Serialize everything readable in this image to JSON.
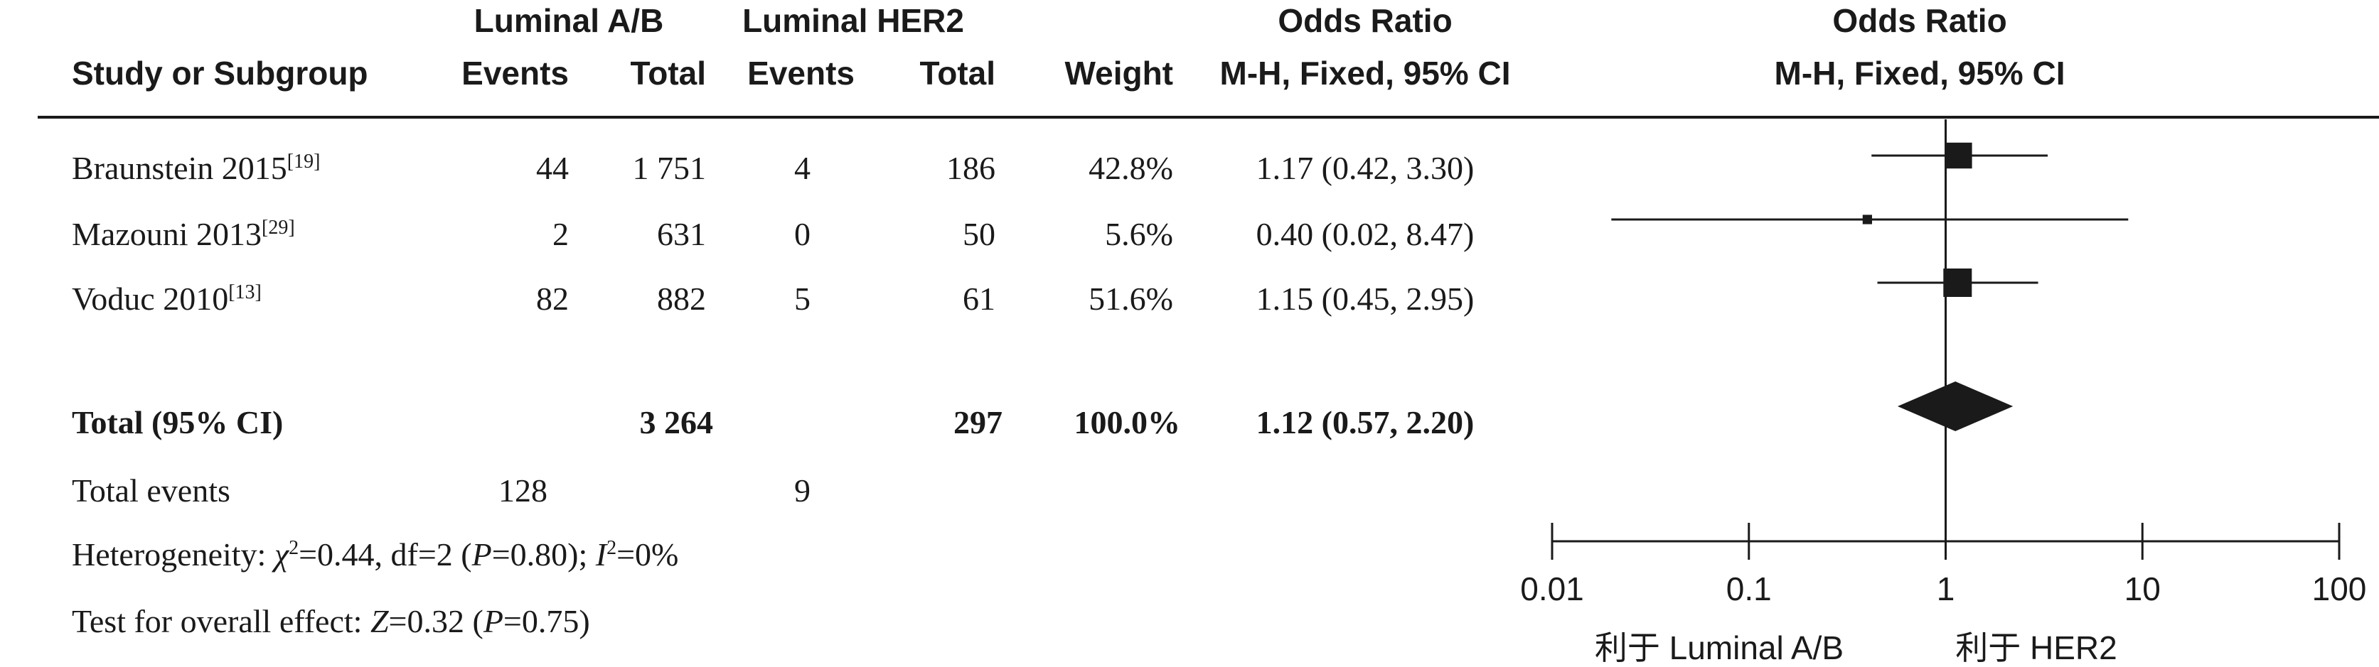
{
  "columns": {
    "group1_name": "Luminal A/B",
    "group2_name": "Luminal HER2",
    "study": "Study or Subgroup",
    "events1": "Events",
    "total1": "Total",
    "events2": "Events",
    "total2": "Total",
    "weight": "Weight",
    "or_title": "Odds Ratio",
    "or_method": "M-H, Fixed, 95% CI",
    "plot_title": "Odds Ratio",
    "plot_method": "M-H, Fixed, 95% CI"
  },
  "studies": [
    {
      "name": "Braunstein 2015",
      "ref": "[19]",
      "events1": "44",
      "total1": "1 751",
      "events2": "4",
      "total2": "186",
      "weight": "42.8%",
      "ci_text": "1.17 (0.42, 3.30)"
    },
    {
      "name": "Mazouni 2013",
      "ref": "[29]",
      "events1": "2",
      "total1": "631",
      "events2": "0",
      "total2": "50",
      "weight": "5.6%",
      "ci_text": "0.40 (0.02, 8.47)"
    },
    {
      "name": "Voduc 2010",
      "ref": "[13]",
      "events1": "82",
      "total1": "882",
      "events2": "5",
      "total2": "61",
      "weight": "51.6%",
      "ci_text": "1.15 (0.45, 2.95)"
    }
  ],
  "total": {
    "label": "Total (95% CI)",
    "total1": "3 264",
    "total2": "297",
    "weight": "100.0%",
    "ci_text": "1.12 (0.57, 2.20)"
  },
  "events": {
    "label": "Total events",
    "events1": "128",
    "events2": "9"
  },
  "heterogeneity": {
    "prefix": "Heterogeneity: ",
    "chi_symbol": "χ",
    "chi_rest": "=0.44, df=2 (",
    "p_symbol": "P",
    "p_rest": "=0.80); ",
    "i_symbol": "I",
    "i_rest": "=0%"
  },
  "overall": {
    "prefix": "Test for overall effect: ",
    "z_symbol": "Z",
    "z_rest": "=0.32 (",
    "p_symbol": "P",
    "p_rest": "=0.75)"
  },
  "chart_data": {
    "type": "forest",
    "x_scale": "log",
    "xlim": [
      0.01,
      100
    ],
    "ticks": [
      0.01,
      0.1,
      1,
      10,
      100
    ],
    "tick_labels": [
      "0.01",
      "0.1",
      "1",
      "10",
      "100"
    ],
    "favours_left": "利于 Luminal A/B",
    "favours_right": "利于 HER2",
    "reference_line": 1,
    "studies": [
      {
        "name": "Braunstein 2015",
        "or": 1.17,
        "lower": 0.42,
        "upper": 3.3,
        "weight": 42.8
      },
      {
        "name": "Mazouni 2013",
        "or": 0.4,
        "lower": 0.02,
        "upper": 8.47,
        "weight": 5.6
      },
      {
        "name": "Voduc 2010",
        "or": 1.15,
        "lower": 0.45,
        "upper": 2.95,
        "weight": 51.6
      }
    ],
    "pooled": {
      "or": 1.12,
      "lower": 0.57,
      "upper": 2.2
    }
  },
  "colors": {
    "ink": "#1a1a1a"
  }
}
